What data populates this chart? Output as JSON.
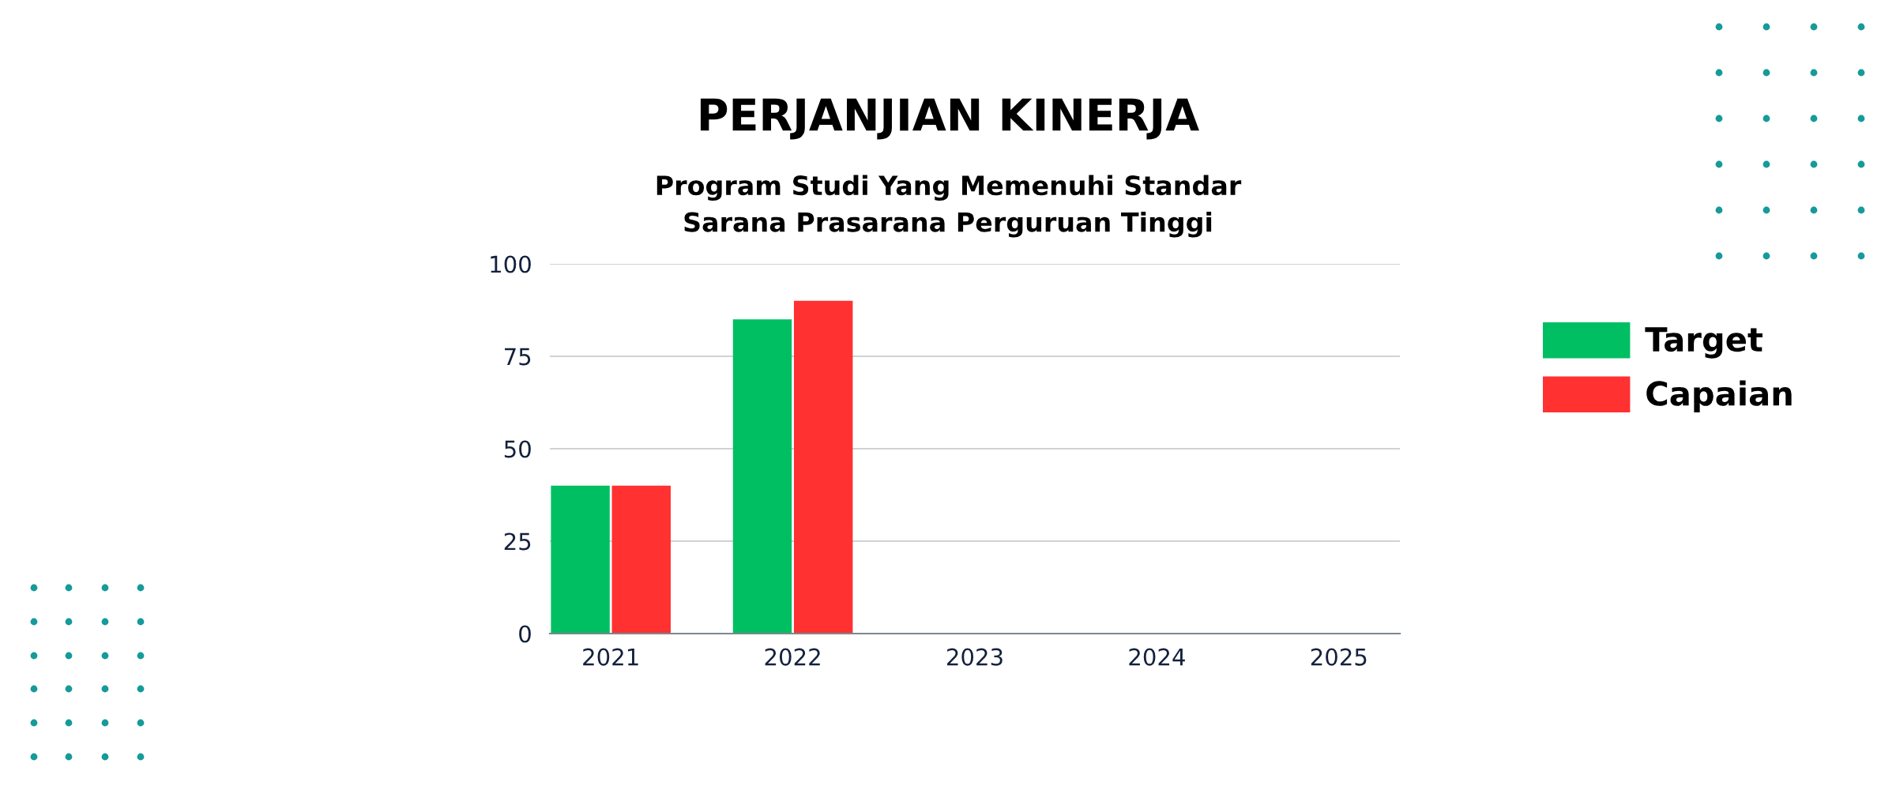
{
  "chart_data": {
    "type": "bar",
    "title": "PERJANJIAN KINERJA",
    "subtitle": "Program Studi Yang Memenuhi Standar\nSarana Prasarana Perguruan Tinggi",
    "categories": [
      "2021",
      "2022",
      "2023",
      "2024",
      "2025"
    ],
    "series": [
      {
        "name": "Target",
        "color": "#00bf63",
        "values": [
          40,
          85,
          null,
          null,
          null
        ]
      },
      {
        "name": "Capaian",
        "color": "#ff3131",
        "values": [
          40,
          90,
          null,
          null,
          null
        ]
      }
    ],
    "ylim": [
      0,
      100
    ],
    "yticks": [
      0,
      25,
      50,
      75,
      100
    ],
    "grid": "y",
    "legend": "right"
  }
}
